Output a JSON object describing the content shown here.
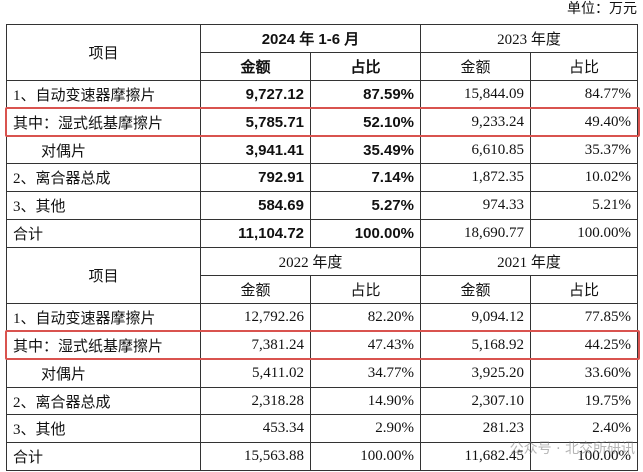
{
  "unit": "单位：万元",
  "watermark": "公众号 · 北交所研讯",
  "sections": [
    {
      "item_header": "项目",
      "periods": [
        "2024 年 1-6 月",
        "2023 年度"
      ],
      "col_headers": [
        "金额",
        "占比",
        "金额",
        "占比"
      ],
      "rows": [
        [
          "1、自动变速器摩擦片",
          "9,727.12",
          "87.59%",
          "15,844.09",
          "84.77%"
        ],
        [
          "其中：湿式纸基摩擦片",
          "5,785.71",
          "52.10%",
          "9,233.24",
          "49.40%"
        ],
        [
          "对偶片",
          "3,941.41",
          "35.49%",
          "6,610.85",
          "35.37%"
        ],
        [
          "2、离合器总成",
          "792.91",
          "7.14%",
          "1,872.35",
          "10.02%"
        ],
        [
          "3、其他",
          "584.69",
          "5.27%",
          "974.33",
          "5.21%"
        ],
        [
          "合计",
          "11,104.72",
          "100.00%",
          "18,690.77",
          "100.00%"
        ]
      ]
    },
    {
      "item_header": "项目",
      "periods": [
        "2022 年度",
        "2021 年度"
      ],
      "col_headers": [
        "金额",
        "占比",
        "金额",
        "占比"
      ],
      "rows": [
        [
          "1、自动变速器摩擦片",
          "12,792.26",
          "82.20%",
          "9,094.12",
          "77.85%"
        ],
        [
          "其中：湿式纸基摩擦片",
          "7,381.24",
          "47.43%",
          "5,168.92",
          "44.25%"
        ],
        [
          "对偶片",
          "5,411.02",
          "34.77%",
          "3,925.20",
          "33.60%"
        ],
        [
          "2、离合器总成",
          "2,318.28",
          "14.90%",
          "2,307.10",
          "19.75%"
        ],
        [
          "3、其他",
          "453.34",
          "2.90%",
          "281.23",
          "2.40%"
        ],
        [
          "合计",
          "15,563.88",
          "100.00%",
          "11,682.45",
          "100.00%"
        ]
      ]
    }
  ]
}
